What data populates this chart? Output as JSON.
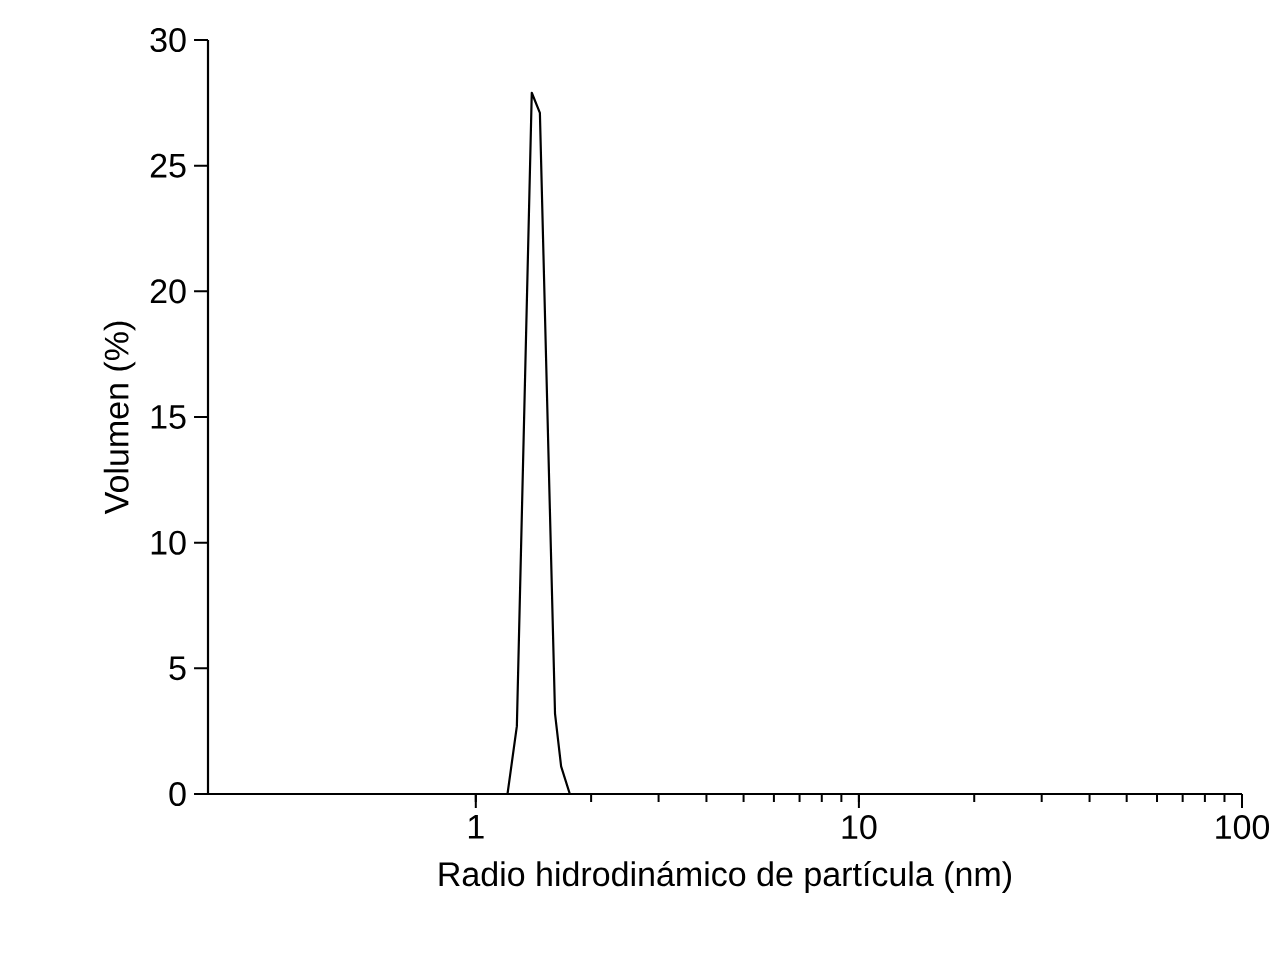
{
  "chart_data": {
    "type": "line",
    "xlabel": "Radio hidrodinámico de partícula (nm)",
    "ylabel": "Volumen (%)",
    "log": "x",
    "x": [
      1.21,
      1.28,
      1.4,
      1.47,
      1.61,
      1.67,
      1.76
    ],
    "series": [
      {
        "color": "#000000",
        "values": [
          0,
          2.7,
          27.9,
          27.1,
          3.2,
          1.1,
          0
        ]
      }
    ],
    "xlim": [
      0.2,
      100
    ],
    "xticks": [
      1,
      10,
      100
    ],
    "ylim": [
      0,
      30
    ],
    "yticks": [
      0,
      5,
      10,
      15,
      20,
      25,
      30
    ],
    "grid": false,
    "marker": "none",
    "line_style": "solid"
  }
}
